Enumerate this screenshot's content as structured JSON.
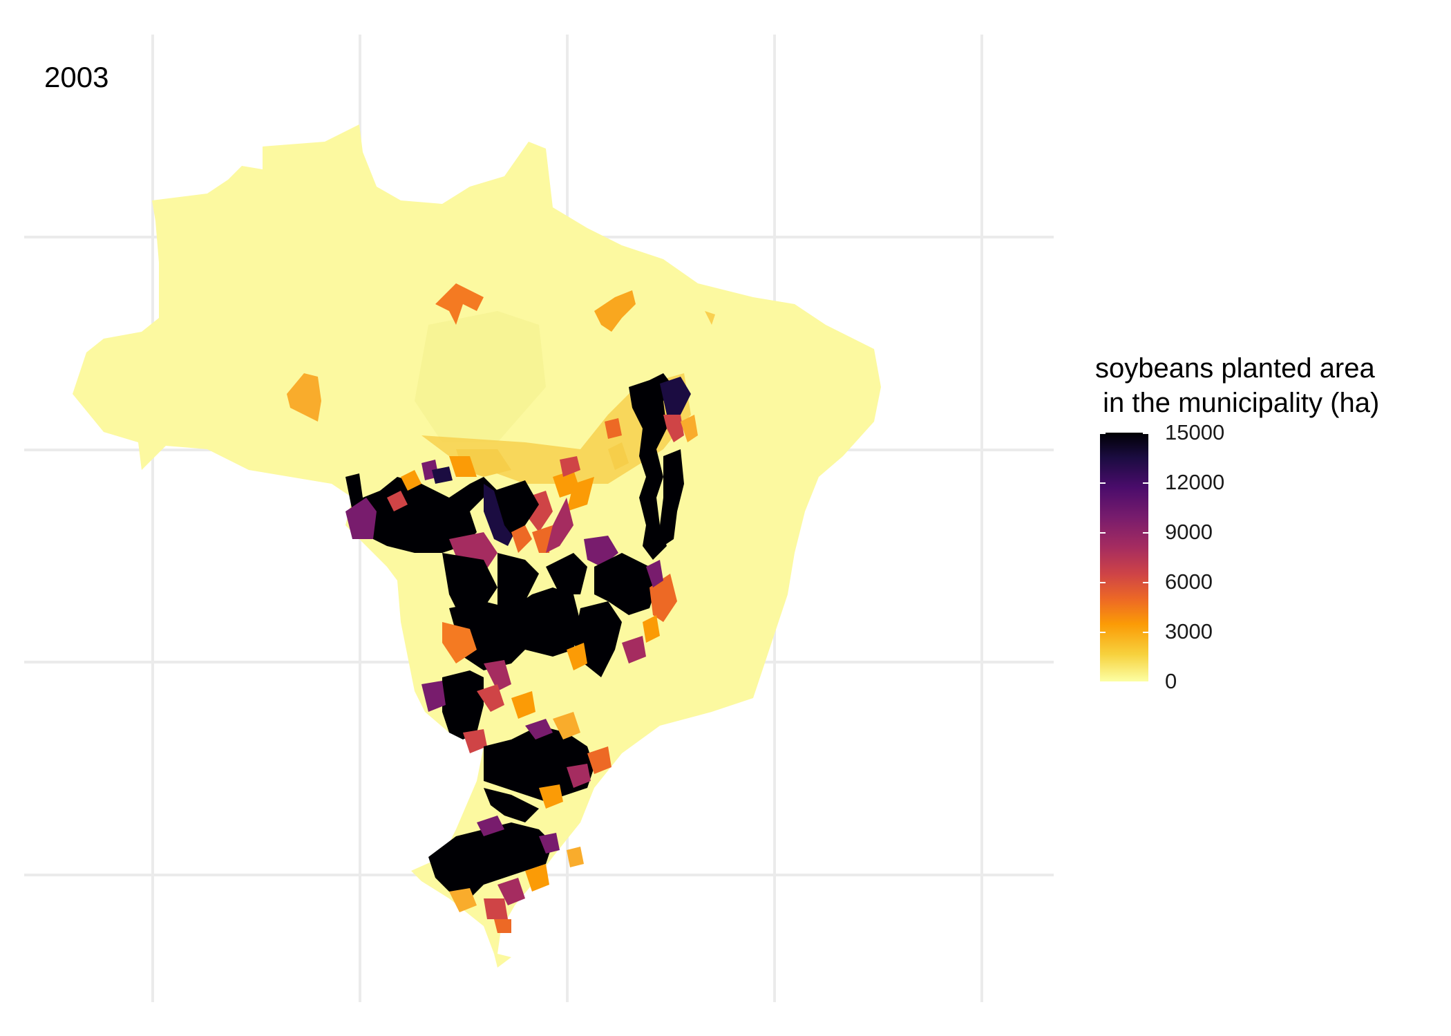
{
  "map": {
    "title": "2003",
    "legend": {
      "title": "soybeans planted area\n in the municipality (ha)",
      "ticks": [
        "15000",
        "12000",
        "9000",
        "6000",
        "3000",
        "0"
      ],
      "tick_values": [
        15000,
        12000,
        9000,
        6000,
        3000,
        0
      ],
      "range": [
        0,
        15000
      ],
      "palette": [
        "#000004",
        "#1b0c41",
        "#4a0c6b",
        "#781c6d",
        "#a52c60",
        "#cf4446",
        "#ed6925",
        "#fb9b06",
        "#f7d13d",
        "#fcffa4"
      ]
    },
    "grid": true,
    "colors": {
      "background": "#ffffff",
      "gridline": "#ebebeb",
      "low": "#fcffa4",
      "high": "#000004"
    }
  }
}
